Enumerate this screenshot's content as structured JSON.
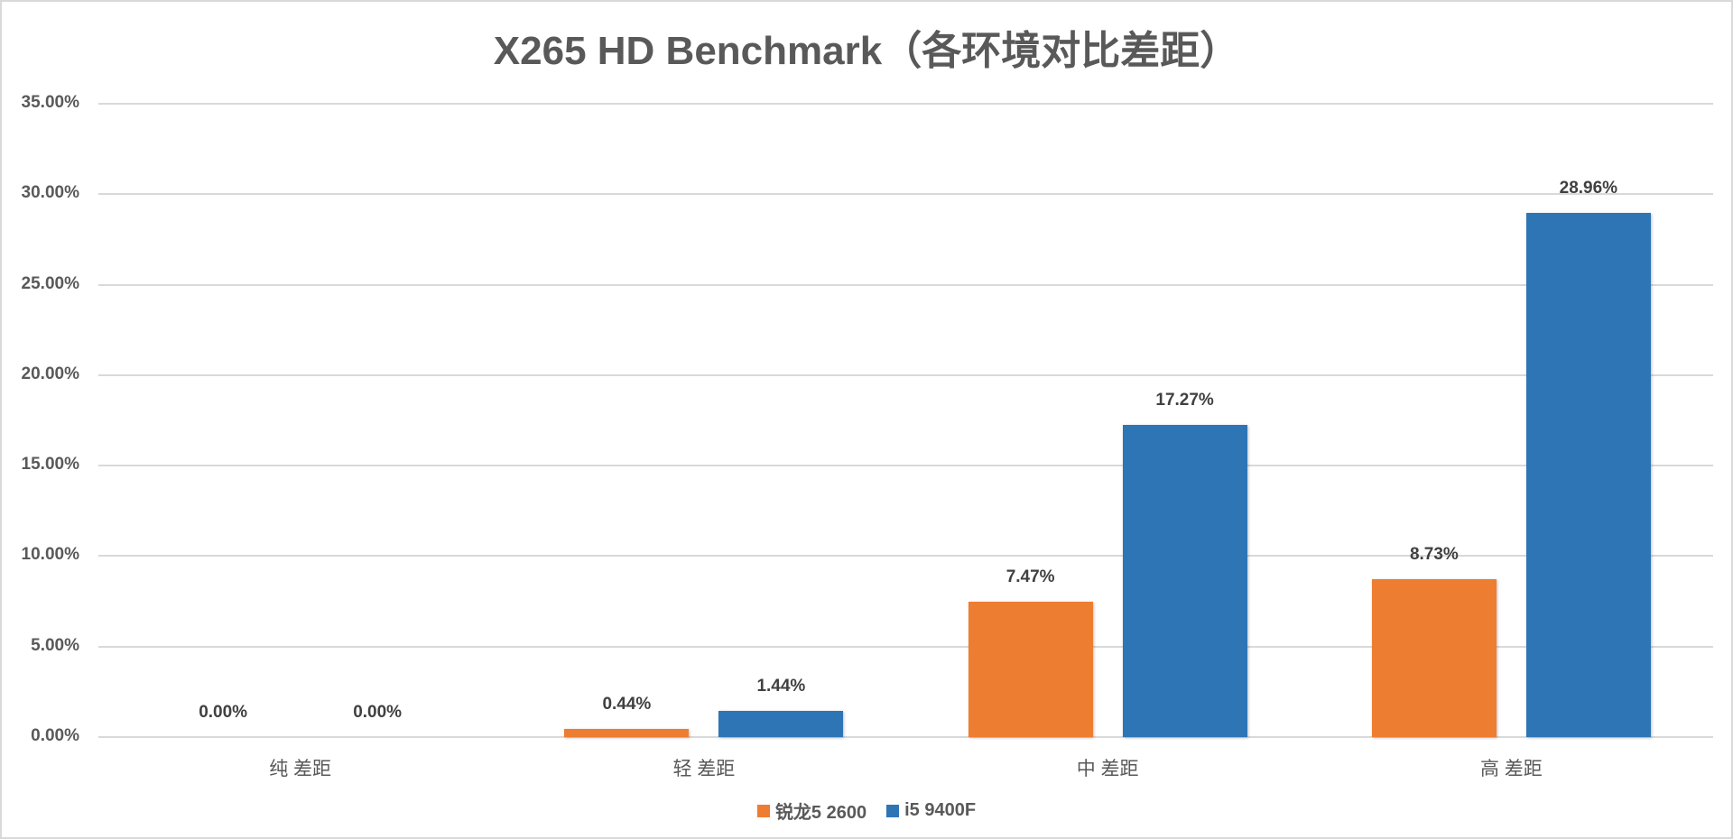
{
  "chart_data": {
    "type": "bar",
    "title": "X265 HD Benchmark（各环境对比差距）",
    "categories": [
      "纯 差距",
      "轻 差距",
      "中 差距",
      "高 差距"
    ],
    "series": [
      {
        "name": "锐龙5 2600",
        "color": "#ED7D31",
        "values": [
          0.0,
          0.44,
          7.47,
          8.73
        ],
        "labels": [
          "0.00%",
          "0.44%",
          "7.47%",
          "8.73%"
        ]
      },
      {
        "name": "i5 9400F",
        "color": "#2E75B6",
        "values": [
          0.0,
          1.44,
          17.27,
          28.96
        ],
        "labels": [
          "0.00%",
          "1.44%",
          "17.27%",
          "28.96%"
        ]
      }
    ],
    "xlabel": "",
    "ylabel": "",
    "ylim": [
      0,
      35
    ],
    "yticks": [
      "0.00%",
      "5.00%",
      "10.00%",
      "15.00%",
      "20.00%",
      "25.00%",
      "30.00%",
      "35.00%"
    ],
    "ytick_values": [
      0,
      5,
      10,
      15,
      20,
      25,
      30,
      35
    ],
    "grid": true,
    "legend_position": "bottom"
  }
}
